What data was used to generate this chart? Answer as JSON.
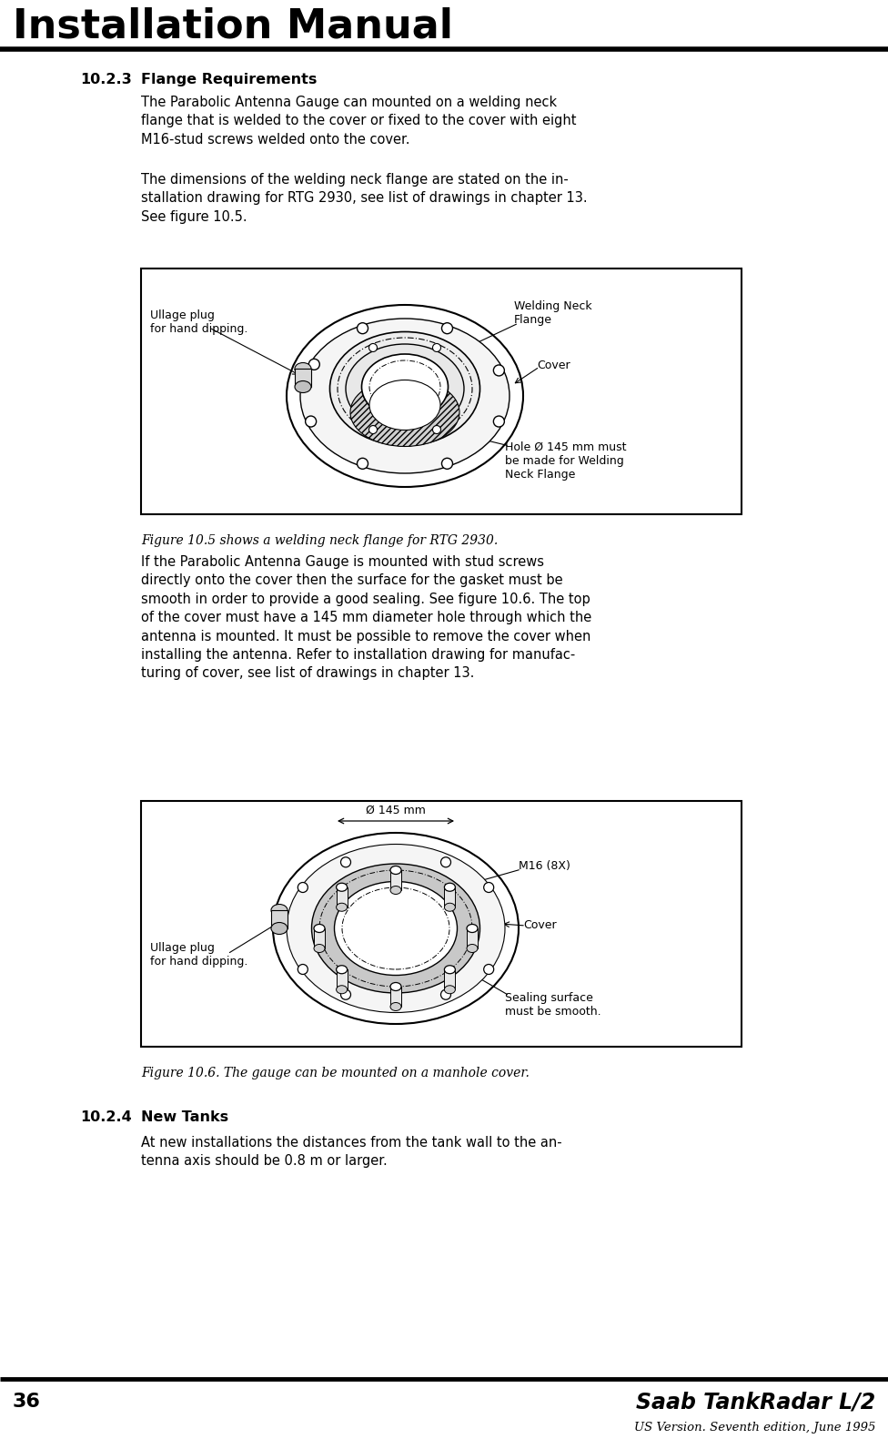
{
  "page_title": "Installation Manual",
  "page_number": "36",
  "footer_brand": "Saab TankRadar L/2",
  "footer_sub": "US Version. Seventh edition, June 1995",
  "section_heading": "10.2.3",
  "section_heading2": "Flange Requirements",
  "para1": "The Parabolic Antenna Gauge can mounted on a welding neck\nflange that is welded to the cover or fixed to the cover with eight\nM16-stud screws welded onto the cover.",
  "para2": "The dimensions of the welding neck flange are stated on the in-\nstallation drawing for RTG 2930, see list of drawings in chapter 13.\nSee figure 10.5.",
  "fig1_caption": "Figure 10.5 shows a welding neck flange for RTG 2930.",
  "fig1_lbl_weld": "Welding Neck\nFlange",
  "fig1_lbl_ullage": "Ullage plug\nfor hand dipping.",
  "fig1_lbl_cover": "Cover",
  "fig1_lbl_hole": "Hole Ø 145 mm must\nbe made for Welding\nNeck Flange",
  "para3": "If the Parabolic Antenna Gauge is mounted with stud screws\ndirectly onto the cover then the surface for the gasket must be\nsmooth in order to provide a good sealing. See figure 10.6. The top\nof the cover must have a 145 mm diameter hole through which the\nantenna is mounted. It must be possible to remove the cover when\ninstalling the antenna. Refer to installation drawing for manufac-\nturing of cover, see list of drawings in chapter 13.",
  "fig2_caption": "Figure 10.6. The gauge can be mounted on a manhole cover.",
  "fig2_lbl_diam": "Ø 145 mm",
  "fig2_lbl_m16": "M16 (8X)",
  "fig2_lbl_cover": "Cover",
  "fig2_lbl_sealing": "Sealing surface\nmust be smooth.",
  "fig2_lbl_ullage": "Ullage plug\nfor hand dipping.",
  "section2_heading": "10.2.4",
  "section2_heading2": "New Tanks",
  "para4": "At new installations the distances from the tank wall to the an-\ntenna axis should be 0.8 m or larger.",
  "bg_color": "#ffffff"
}
